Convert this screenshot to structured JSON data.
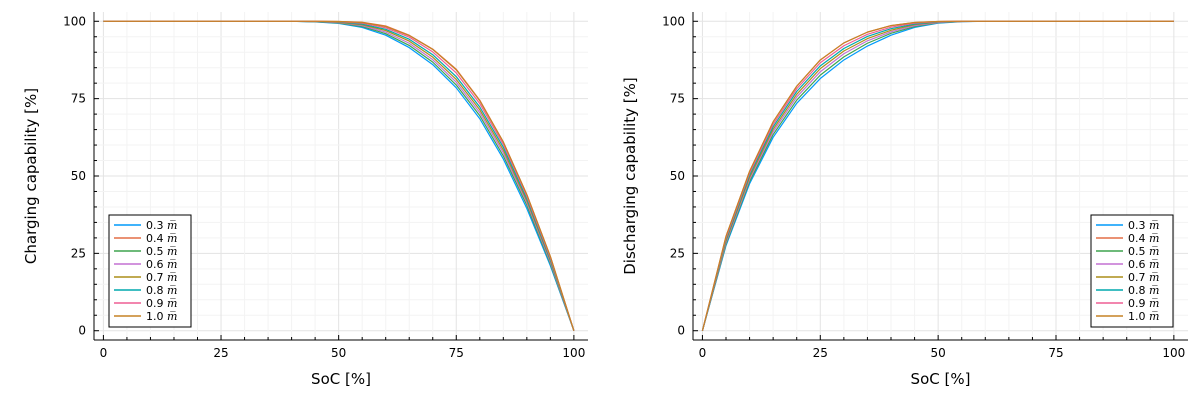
{
  "chart_data": [
    {
      "type": "line",
      "xlabel": "SoC [%]",
      "ylabel": "Charging capability [%]",
      "xlim": [
        -2,
        103
      ],
      "ylim": [
        -3,
        103
      ],
      "xticks": [
        0,
        25,
        50,
        75,
        100
      ],
      "yticks": [
        0,
        25,
        50,
        75,
        100
      ],
      "grid": true,
      "legend_position": "bottom-left",
      "legend_unit": "m̅",
      "x": [
        0,
        5,
        10,
        15,
        20,
        25,
        30,
        35,
        40,
        45,
        50,
        55,
        60,
        65,
        70,
        75,
        80,
        85,
        90,
        95,
        100
      ],
      "series": [
        {
          "name": "0.3",
          "color": "#009AFA",
          "values": [
            100,
            100,
            100,
            100,
            100,
            100,
            100,
            100,
            100,
            99.8,
            99.3,
            98.0,
            95.5,
            91.5,
            86.0,
            78.5,
            68.5,
            55.5,
            39.5,
            21.0,
            0
          ]
        },
        {
          "name": "0.4",
          "color": "#E36F47",
          "values": [
            100,
            100,
            100,
            100,
            100,
            100,
            100,
            100,
            100,
            100,
            99.95,
            99.7,
            98.5,
            95.5,
            91.0,
            84.5,
            74.5,
            61.0,
            44.0,
            24.0,
            0
          ]
        },
        {
          "name": "0.5",
          "color": "#3EA44E",
          "values": [
            100,
            100,
            100,
            100,
            100,
            100,
            100,
            100,
            100,
            99.85,
            99.45,
            98.3,
            96.0,
            92.2,
            86.8,
            79.4,
            69.5,
            56.5,
            40.5,
            21.6,
            0
          ]
        },
        {
          "name": "0.6",
          "color": "#C371D2",
          "values": [
            100,
            100,
            100,
            100,
            100,
            100,
            100,
            100,
            100,
            99.88,
            99.55,
            98.6,
            96.5,
            92.9,
            87.6,
            80.3,
            70.5,
            57.5,
            41.3,
            22.1,
            0
          ]
        },
        {
          "name": "0.7",
          "color": "#AC8E18",
          "values": [
            100,
            100,
            100,
            100,
            100,
            100,
            100,
            100,
            100,
            99.91,
            99.65,
            98.85,
            97.0,
            93.6,
            88.4,
            81.2,
            71.4,
            58.4,
            42.0,
            22.6,
            0
          ]
        },
        {
          "name": "0.8",
          "color": "#00A9AD",
          "values": [
            100,
            100,
            100,
            100,
            100,
            100,
            100,
            100,
            100,
            99.94,
            99.75,
            99.1,
            97.4,
            94.2,
            89.2,
            82.1,
            72.3,
            59.3,
            42.7,
            23.0,
            0
          ]
        },
        {
          "name": "0.9",
          "color": "#ED5E93",
          "values": [
            100,
            100,
            100,
            100,
            100,
            100,
            100,
            100,
            100,
            99.97,
            99.85,
            99.4,
            97.9,
            94.9,
            90.1,
            83.3,
            73.4,
            60.2,
            43.4,
            23.5,
            0
          ]
        },
        {
          "name": "1.0",
          "color": "#C68225",
          "values": [
            100,
            100,
            100,
            100,
            100,
            100,
            100,
            100,
            100,
            100,
            99.92,
            99.6,
            98.3,
            95.4,
            90.9,
            84.3,
            74.3,
            61.0,
            44.0,
            24.0,
            0
          ]
        }
      ]
    },
    {
      "type": "line",
      "xlabel": "SoC [%]",
      "ylabel": "Discharging capability [%]",
      "xlim": [
        -2,
        103
      ],
      "ylim": [
        -3,
        103
      ],
      "xticks": [
        0,
        25,
        50,
        75,
        100
      ],
      "yticks": [
        0,
        25,
        50,
        75,
        100
      ],
      "grid": true,
      "legend_position": "bottom-right",
      "legend_unit": "m̅",
      "x": [
        0,
        5,
        10,
        15,
        20,
        25,
        30,
        35,
        40,
        45,
        50,
        55,
        60,
        65,
        70,
        75,
        80,
        85,
        90,
        95,
        100
      ],
      "series": [
        {
          "name": "0.3",
          "color": "#009AFA",
          "values": [
            0,
            27.5,
            47.5,
            62.5,
            73.5,
            81.5,
            87.5,
            92.0,
            95.5,
            98.0,
            99.4,
            99.9,
            100,
            100,
            100,
            100,
            100,
            100,
            100,
            100,
            100
          ]
        },
        {
          "name": "0.4",
          "color": "#E36F47",
          "values": [
            0,
            30.5,
            51.5,
            67.5,
            79.0,
            87.5,
            93.0,
            96.5,
            98.6,
            99.6,
            99.95,
            100,
            100,
            100,
            100,
            100,
            100,
            100,
            100,
            100,
            100
          ]
        },
        {
          "name": "0.5",
          "color": "#3EA44E",
          "values": [
            0,
            28.0,
            48.2,
            63.4,
            74.5,
            82.6,
            88.5,
            92.9,
            96.1,
            98.3,
            99.5,
            99.92,
            100,
            100,
            100,
            100,
            100,
            100,
            100,
            100,
            100
          ]
        },
        {
          "name": "0.6",
          "color": "#C371D2",
          "values": [
            0,
            28.5,
            48.9,
            64.3,
            75.5,
            83.7,
            89.5,
            93.7,
            96.6,
            98.6,
            99.6,
            99.94,
            100,
            100,
            100,
            100,
            100,
            100,
            100,
            100,
            100
          ]
        },
        {
          "name": "0.7",
          "color": "#AC8E18",
          "values": [
            0,
            29.0,
            49.6,
            65.1,
            76.4,
            84.7,
            90.4,
            94.4,
            97.1,
            98.9,
            99.7,
            99.96,
            100,
            100,
            100,
            100,
            100,
            100,
            100,
            100,
            100
          ]
        },
        {
          "name": "0.8",
          "color": "#00A9AD",
          "values": [
            0,
            29.5,
            50.3,
            65.9,
            77.3,
            85.6,
            91.2,
            95.1,
            97.6,
            99.1,
            99.8,
            99.98,
            100,
            100,
            100,
            100,
            100,
            100,
            100,
            100,
            100
          ]
        },
        {
          "name": "0.9",
          "color": "#ED5E93",
          "values": [
            0,
            30.0,
            50.9,
            66.7,
            78.2,
            86.6,
            92.1,
            95.8,
            98.1,
            99.4,
            99.9,
            100,
            100,
            100,
            100,
            100,
            100,
            100,
            100,
            100,
            100
          ]
        },
        {
          "name": "1.0",
          "color": "#C68225",
          "values": [
            0,
            30.5,
            51.5,
            67.5,
            79.0,
            87.5,
            93.0,
            96.5,
            98.6,
            99.6,
            99.95,
            100,
            100,
            100,
            100,
            100,
            100,
            100,
            100,
            100,
            100
          ]
        }
      ]
    }
  ]
}
